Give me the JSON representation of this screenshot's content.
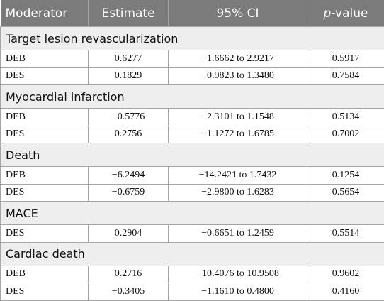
{
  "table": {
    "header": [
      "Moderator",
      "Estimate",
      "95% CI",
      "p-value"
    ],
    "groups": [
      {
        "title": "Target lesion revascularization",
        "rows": [
          [
            "DEB",
            "0.6277",
            "−1.6662 to 2.9217",
            "0.5917"
          ],
          [
            "DES",
            "0.1829",
            "−0.9823 to 1.3480",
            "0.7584"
          ]
        ]
      },
      {
        "title": "Myocardial infarction",
        "rows": [
          [
            "DEB",
            "−0.5776",
            "−2.3101 to 1.1548",
            "0.5134"
          ],
          [
            "DES",
            "0.2756",
            "−1.1272 to 1.6785",
            "0.7002"
          ]
        ]
      },
      {
        "title": "Death",
        "rows": [
          [
            "DEB",
            "−6.2494",
            "−14.2421 to 1.7432",
            "0.1254"
          ],
          [
            "DES",
            "−0.6759",
            "−2.9800 to 1.6283",
            "0.5654"
          ]
        ]
      },
      {
        "title": "MACE",
        "rows": [
          [
            "DES",
            "0.2904",
            "−0.6651 to 1.2459",
            "0.5514"
          ]
        ]
      },
      {
        "title": "Cardiac death",
        "rows": [
          [
            "DEB",
            "0.2716",
            "−10.4076 to 10.9508",
            "0.9602"
          ],
          [
            "DES",
            "−0.3405",
            "−1.1610 to 0.4800",
            "0.4160"
          ]
        ]
      }
    ]
  }
}
